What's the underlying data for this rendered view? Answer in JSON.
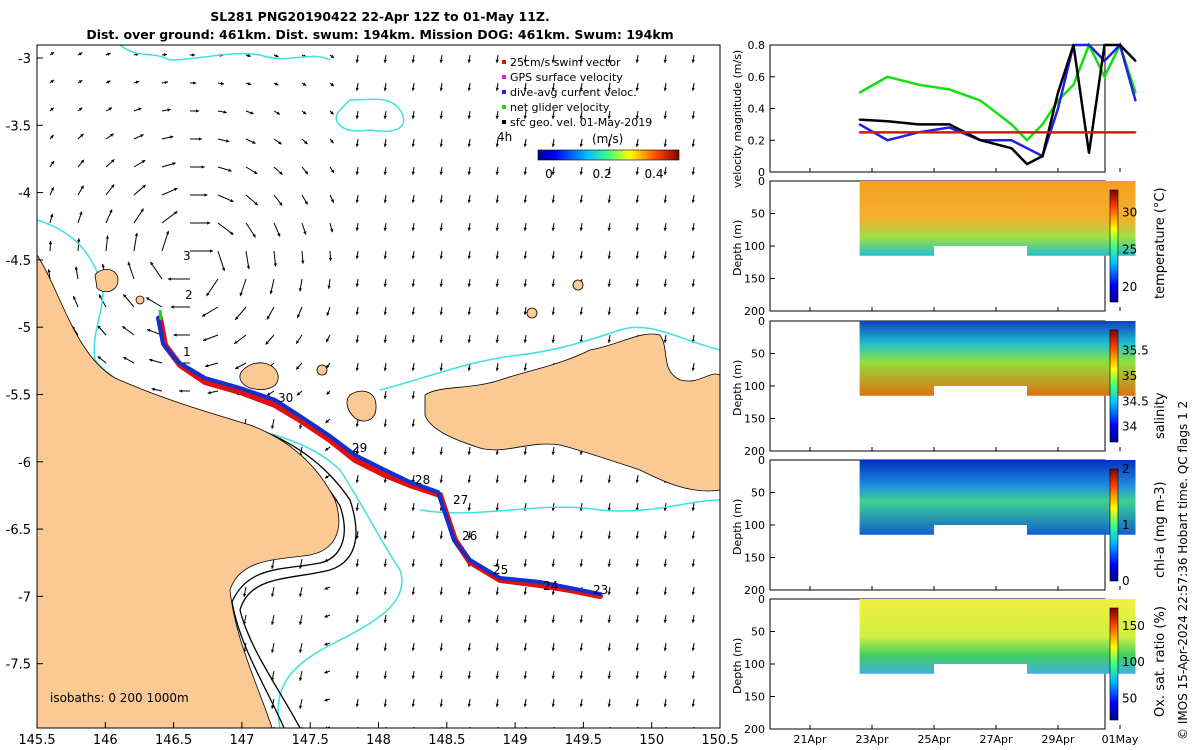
{
  "header": {
    "title_line1": "SL281 PNG20190422 22-Apr 12Z to 01-May 11Z.",
    "title_line2": "Dist. over ground: 461km. Dist. swum: 194km. Mission DOG: 461km. Swum: 194km"
  },
  "map": {
    "x_ticks": [
      "145.5",
      "146",
      "146.5",
      "147",
      "147.5",
      "148",
      "148.5",
      "149",
      "149.5",
      "150",
      "150.5"
    ],
    "y_ticks": [
      "-3",
      "-3.5",
      "-4",
      "-4.5",
      "-5",
      "-5.5",
      "-6",
      "-6.5",
      "-7",
      "-7.5"
    ],
    "legend": [
      "25cm/s swim vector",
      "GPS surface velocity",
      "dive-avg current veloc.",
      "net glider velocity",
      "sfc geo. vel. 01-May-2019"
    ],
    "colorbar_label": "(m/s)",
    "colorbar_ticks": [
      "0",
      "0.2",
      "0.4"
    ],
    "marker_4h": "4h",
    "isobaths_label": "isobaths: 0   200  1000m",
    "day_labels": [
      "3",
      "2",
      "1",
      "30",
      "29",
      "28",
      "27",
      "26",
      "25",
      "24",
      "23"
    ],
    "colors": {
      "land": "#fbc994",
      "isobath": "#3fe0e0",
      "track_red": "#e01010",
      "track_blue": "#1030d0",
      "net_green": "#10e010"
    }
  },
  "chart_data": [
    {
      "type": "line",
      "title": "",
      "ylabel": "velocity magnitude (m/s)",
      "ylim": [
        0,
        0.8
      ],
      "y_ticks": [
        "0",
        "0.2",
        "0.4",
        "0.6",
        "0.8"
      ],
      "x": [
        "22.6",
        "23.5",
        "24.5",
        "25.5",
        "26.5",
        "27.5",
        "28.0",
        "28.5",
        "29.0",
        "29.5",
        "30.0",
        "30.5",
        "31.0",
        "31.5"
      ],
      "series": [
        {
          "name": "net glider velocity",
          "color": "#10e010",
          "values": [
            0.5,
            0.6,
            0.55,
            0.52,
            0.45,
            0.3,
            0.2,
            0.3,
            0.45,
            0.55,
            0.8,
            0.6,
            0.8,
            0.5
          ]
        },
        {
          "name": "dive-avg current veloc.",
          "color": "#2020e0",
          "values": [
            0.3,
            0.2,
            0.25,
            0.28,
            0.2,
            0.2,
            0.15,
            0.1,
            0.4,
            0.8,
            0.8,
            0.7,
            0.8,
            0.45
          ]
        },
        {
          "name": "sfc geo. vel.",
          "color": "#000000",
          "values": [
            0.33,
            0.32,
            0.3,
            0.3,
            0.2,
            0.15,
            0.05,
            0.1,
            0.5,
            0.8,
            0.12,
            0.8,
            0.8,
            0.7
          ]
        },
        {
          "name": "25cm/s swim",
          "color": "#e01010",
          "values": [
            0.25,
            0.25,
            0.25,
            0.25,
            0.25,
            0.25,
            0.25,
            0.25,
            0.25,
            0.25,
            0.25,
            0.25,
            0.25,
            0.25
          ]
        }
      ]
    },
    {
      "type": "heatmap",
      "ylabel": "Depth (m)",
      "clabel": "temperature (°C)",
      "ylim": [
        200,
        0
      ],
      "y_ticks": [
        "0",
        "50",
        "100",
        "150",
        "200"
      ],
      "c_ticks": [
        "20",
        "25",
        "30"
      ],
      "crange": [
        18,
        33
      ]
    },
    {
      "type": "heatmap",
      "ylabel": "Depth (m)",
      "clabel": "salinity",
      "ylim": [
        200,
        0
      ],
      "y_ticks": [
        "0",
        "50",
        "100",
        "150",
        "200"
      ],
      "c_ticks": [
        "34",
        "34.5",
        "35",
        "35.5"
      ],
      "crange": [
        33.7,
        35.9
      ]
    },
    {
      "type": "heatmap",
      "ylabel": "Depth (m)",
      "clabel": "chl-a (mg m-3)",
      "ylim": [
        200,
        0
      ],
      "y_ticks": [
        "0",
        "50",
        "100",
        "150",
        "200"
      ],
      "c_ticks": [
        "0",
        "1",
        "2"
      ],
      "crange": [
        0,
        2
      ]
    },
    {
      "type": "heatmap",
      "ylabel": "Depth (m)",
      "clabel": "Ox. sat. ratio (%)",
      "ylim": [
        200,
        0
      ],
      "y_ticks": [
        "0",
        "50",
        "100",
        "150",
        "200"
      ],
      "c_ticks": [
        "50",
        "100",
        "150"
      ],
      "crange": [
        20,
        175
      ]
    }
  ],
  "time_axis": {
    "ticks": [
      "21Apr",
      "23Apr",
      "25Apr",
      "27Apr",
      "29Apr",
      "01May"
    ]
  },
  "footer": {
    "copyright": "© IMOS 15-Apr-2024 22:57:36 Hobart time. QC flags 1  2"
  }
}
